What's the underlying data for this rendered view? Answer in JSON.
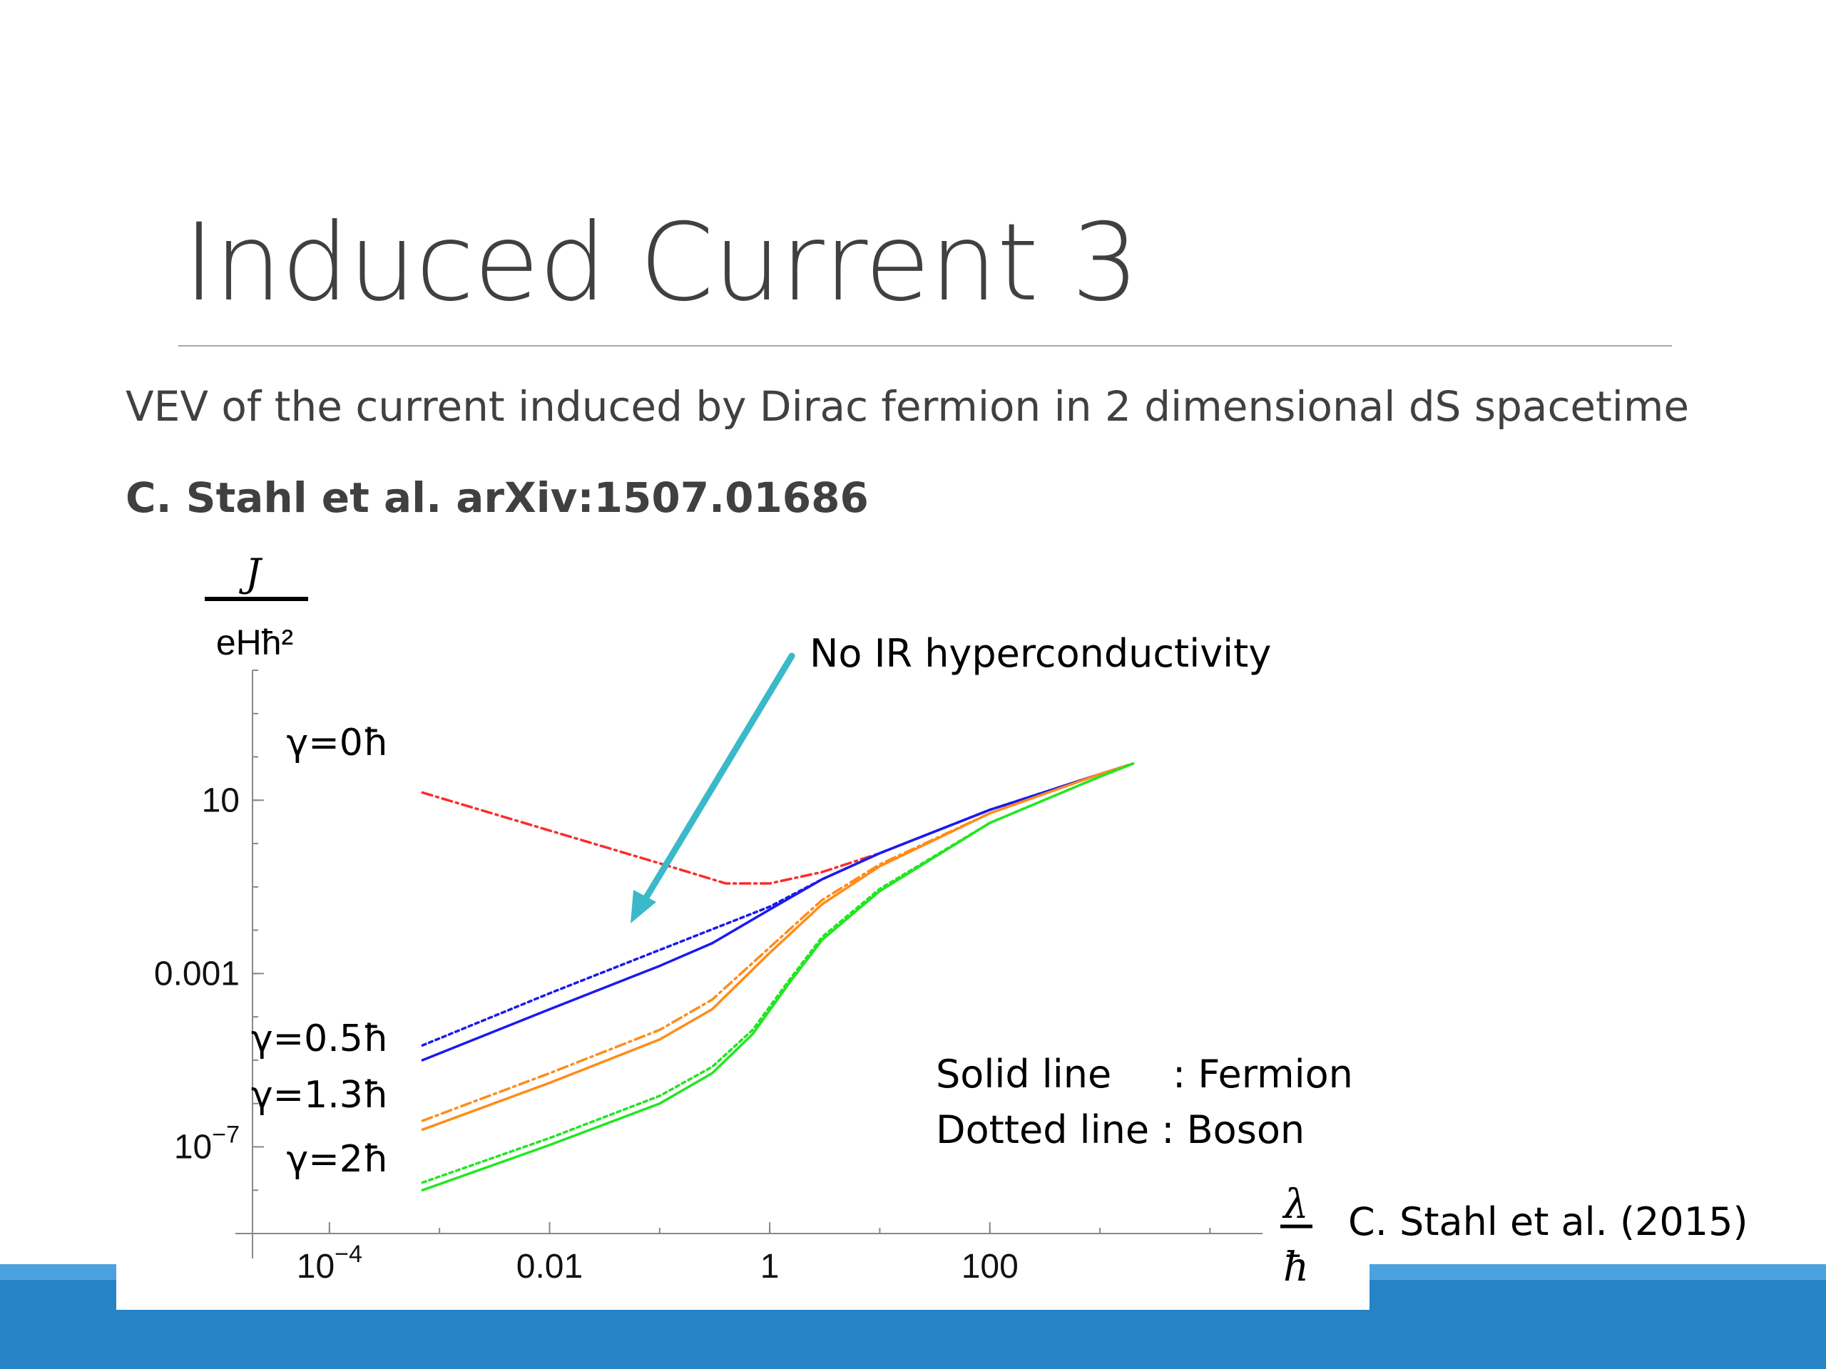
{
  "slide": {
    "title": "Induced Current 3",
    "subtitle": "VEV of the current induced by Dirac fermion in 2 dimensional dS spacetime",
    "citation": "C. Stahl et al. arXiv:1507.01686"
  },
  "legend": {
    "solid": "Solid line     : Fermion",
    "dotted": "Dotted line : Boson"
  },
  "source": "C. Stahl et al. (2015)",
  "colors": {
    "gamma0": "#ff2a2a",
    "gamma05": "#1a1aee",
    "gamma13": "#ff8c1a",
    "gamma2": "#22e622",
    "arrow": "#39b9c9",
    "axis": "#888888"
  },
  "chart_data": {
    "type": "line",
    "x_scale": "log",
    "y_scale": "log",
    "xlim": [
      2e-05,
      30000
    ],
    "ylim": [
      1e-09,
      10000
    ],
    "xlabel_num": "λ",
    "xlabel_den": "ħ",
    "ylabel_num": "J",
    "ylabel_den": "eHħ²",
    "x_ticks": [
      {
        "value": 0.0001,
        "base": "10",
        "exp": "−4"
      },
      {
        "value": 0.01,
        "base": "0.01",
        "exp": ""
      },
      {
        "value": 1,
        "base": "1",
        "exp": ""
      },
      {
        "value": 100,
        "base": "100",
        "exp": ""
      }
    ],
    "y_ticks": [
      {
        "value": 10,
        "base": "10",
        "exp": ""
      },
      {
        "value": 0.001,
        "base": "0.001",
        "exp": ""
      },
      {
        "value": 1e-07,
        "base": "10",
        "exp": "−7"
      }
    ],
    "annotation": "No IR hyperconductivity",
    "series": [
      {
        "name": "γ=0ħ",
        "color_key": "gamma0",
        "style": "dashdot",
        "x": [
          0.0007,
          0.01,
          0.1,
          0.4,
          1,
          3,
          10,
          100,
          1000,
          2000
        ],
        "y": [
          15,
          2,
          0.35,
          0.12,
          0.12,
          0.22,
          0.6,
          6,
          40,
          70
        ]
      },
      {
        "name": "γ=0.5ħ",
        "color_key": "gamma05",
        "style": "solid",
        "x": [
          0.0007,
          0.01,
          0.1,
          0.3,
          1,
          3,
          10,
          100,
          1000,
          2000
        ],
        "y": [
          1e-05,
          0.00015,
          0.0015,
          0.005,
          0.03,
          0.15,
          0.6,
          6,
          40,
          70
        ]
      },
      {
        "name": "γ=0.5ħ (boson)",
        "color_key": "gamma05",
        "style": "dotted",
        "x": [
          0.0007,
          0.01,
          0.1,
          1,
          3,
          10,
          100,
          1000,
          2000
        ],
        "y": [
          2.2e-05,
          0.00035,
          0.0035,
          0.035,
          0.15,
          0.6,
          6,
          40,
          70
        ]
      },
      {
        "name": "γ=1.3ħ",
        "color_key": "gamma13",
        "style": "solid",
        "x": [
          0.0007,
          0.01,
          0.1,
          0.3,
          1,
          3,
          10,
          100,
          1000,
          2000
        ],
        "y": [
          2.5e-07,
          3e-06,
          3e-05,
          0.00015,
          0.003,
          0.04,
          0.3,
          5,
          40,
          70
        ]
      },
      {
        "name": "γ=1.3ħ (boson)",
        "color_key": "gamma13",
        "style": "dashdot",
        "x": [
          0.0007,
          0.01,
          0.1,
          0.3,
          1,
          3,
          10,
          100,
          1000,
          2000
        ],
        "y": [
          4e-07,
          5e-06,
          5e-05,
          0.00025,
          0.004,
          0.05,
          0.33,
          5,
          40,
          70
        ]
      },
      {
        "name": "γ=2ħ",
        "color_key": "gamma2",
        "style": "solid",
        "x": [
          0.0007,
          0.01,
          0.1,
          0.3,
          0.7,
          1.5,
          3,
          10,
          100,
          1000,
          2000
        ],
        "y": [
          1e-08,
          1.1e-07,
          1e-06,
          5e-06,
          4e-05,
          0.0006,
          0.006,
          0.08,
          3,
          35,
          70
        ]
      },
      {
        "name": "γ=2ħ (boson)",
        "color_key": "gamma2",
        "style": "dotted",
        "x": [
          0.0007,
          0.01,
          0.1,
          0.3,
          0.7,
          1.5,
          3,
          10,
          100,
          1000,
          2000
        ],
        "y": [
          1.5e-08,
          1.6e-07,
          1.5e-06,
          7e-06,
          5e-05,
          0.0007,
          0.007,
          0.09,
          3,
          35,
          70
        ]
      }
    ],
    "curve_labels": [
      {
        "text": "γ=0ħ",
        "y": 200
      },
      {
        "text": "γ=0.5ħ",
        "y": 3e-05
      },
      {
        "text": "γ=1.3ħ",
        "y": 1.5e-06
      },
      {
        "text": "γ=2ħ",
        "y": 5e-08
      }
    ]
  }
}
